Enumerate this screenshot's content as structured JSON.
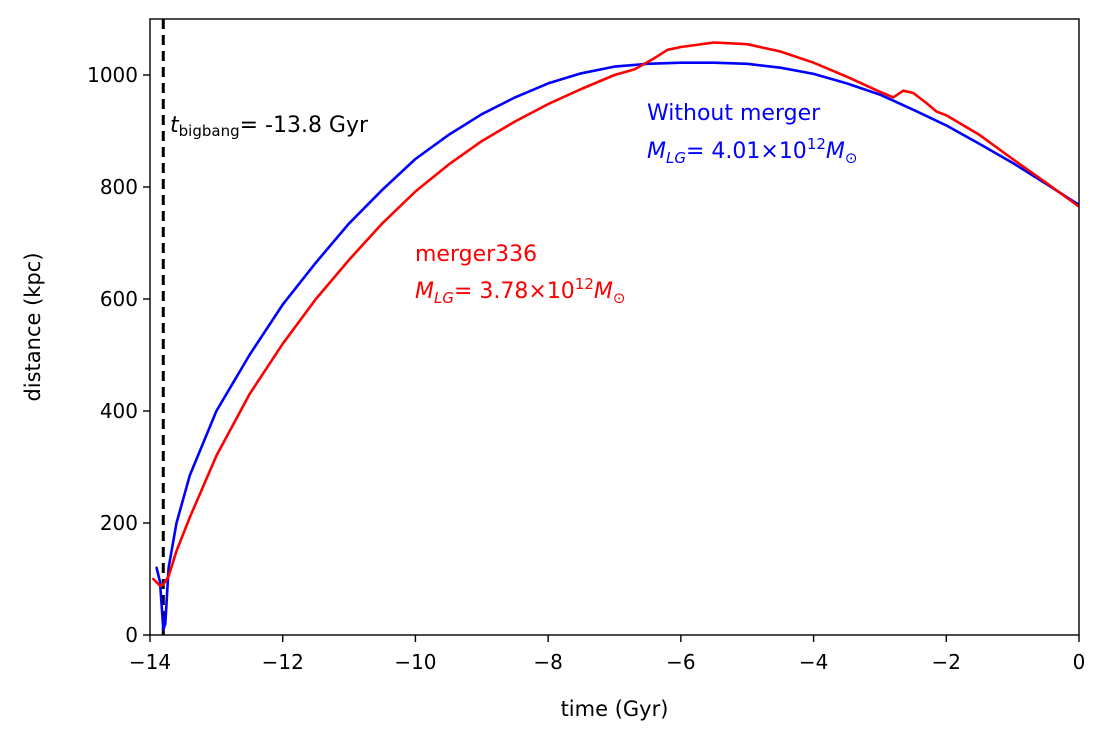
{
  "chart_data": {
    "type": "line",
    "xlabel": "time (Gyr)",
    "ylabel": "distance (kpc)",
    "xlim": [
      -14,
      0
    ],
    "ylim": [
      0,
      1100
    ],
    "x_ticks": [
      -14,
      -12,
      -10,
      -8,
      -6,
      -4,
      -2,
      0
    ],
    "x_tick_labels": [
      "−14",
      "−12",
      "−10",
      "−8",
      "−6",
      "−4",
      "−2",
      "0"
    ],
    "y_ticks": [
      0,
      200,
      400,
      600,
      800,
      1000
    ],
    "y_tick_labels": [
      "0",
      "200",
      "400",
      "600",
      "800",
      "1000"
    ],
    "grid": false,
    "vline": {
      "x": -13.8,
      "style": "dashed",
      "color": "#000000",
      "label_var": "t",
      "label_sub": "bigbang",
      "label_text": "= -13.8 Gyr"
    },
    "series": [
      {
        "name": "Without merger",
        "color": "#0000ff",
        "mass_label": "M",
        "mass_sub": "LG",
        "mass_text": "= 4.01×10",
        "mass_exp": "12",
        "mass_unit": "M",
        "mass_unit_sub": "⊙",
        "x": [
          -13.9,
          -13.85,
          -13.8,
          -13.77,
          -13.72,
          -13.6,
          -13.4,
          -13.0,
          -12.5,
          -12.0,
          -11.5,
          -11.0,
          -10.5,
          -10.0,
          -9.5,
          -9.0,
          -8.5,
          -8.0,
          -7.5,
          -7.0,
          -6.5,
          -6.0,
          -5.5,
          -5.0,
          -4.5,
          -4.0,
          -3.5,
          -3.0,
          -2.5,
          -2.0,
          -1.5,
          -1.0,
          -0.5,
          0.0
        ],
        "y": [
          120,
          95,
          10,
          20,
          120,
          200,
          285,
          400,
          500,
          590,
          665,
          735,
          795,
          850,
          893,
          930,
          960,
          985,
          1003,
          1015,
          1020,
          1022,
          1022,
          1020,
          1013,
          1002,
          985,
          965,
          938,
          910,
          877,
          843,
          806,
          768
        ]
      },
      {
        "name": "merger336",
        "color": "#ff0000",
        "mass_label": "M",
        "mass_sub": "LG",
        "mass_text": "= 3.78×10",
        "mass_exp": "12",
        "mass_unit": "M",
        "mass_unit_sub": "⊙",
        "x": [
          -13.95,
          -13.85,
          -13.8,
          -13.72,
          -13.6,
          -13.4,
          -13.0,
          -12.5,
          -12.0,
          -11.5,
          -11.0,
          -10.5,
          -10.0,
          -9.5,
          -9.0,
          -8.5,
          -8.0,
          -7.5,
          -7.0,
          -6.7,
          -6.4,
          -6.2,
          -6.0,
          -5.5,
          -5.0,
          -4.5,
          -4.0,
          -3.5,
          -3.0,
          -2.8,
          -2.65,
          -2.5,
          -2.3,
          -2.15,
          -2.0,
          -1.5,
          -1.0,
          -0.5,
          0.0
        ],
        "y": [
          100,
          88,
          90,
          105,
          150,
          210,
          320,
          430,
          520,
          600,
          670,
          735,
          792,
          840,
          882,
          917,
          948,
          975,
          1000,
          1010,
          1030,
          1045,
          1050,
          1058,
          1055,
          1042,
          1022,
          997,
          970,
          960,
          972,
          968,
          950,
          935,
          928,
          893,
          850,
          808,
          765
        ]
      }
    ]
  }
}
